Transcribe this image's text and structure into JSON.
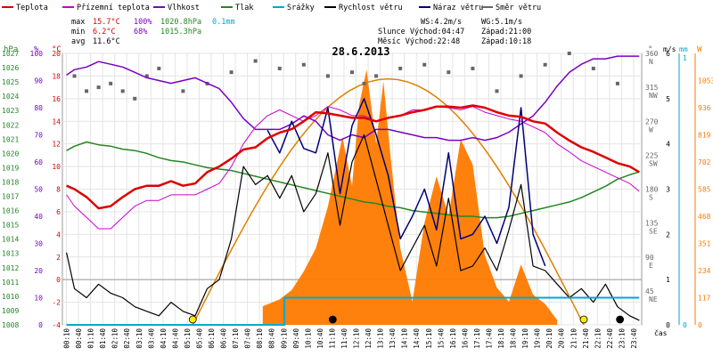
{
  "chart_data": {
    "type": "line",
    "title": "28.6.2013",
    "colors": {
      "temperature": "#dd0000",
      "apparent": "#cc00cc",
      "humidity": "#7a00c4",
      "pressure": "#228822",
      "rain": "#00aacc",
      "wind_speed": "#000000",
      "gust": "#00007a",
      "wind_dir": "#666666",
      "radiation": "#ff7a00",
      "sun_arc": "#e08000",
      "threshold": "#999999"
    },
    "legend": [
      {
        "key": "temperature",
        "label": "Teplota"
      },
      {
        "key": "apparent",
        "label": "Přízemní teplota"
      },
      {
        "key": "humidity",
        "label": "Vlhkost"
      },
      {
        "key": "pressure",
        "label": "Tlak"
      },
      {
        "key": "rain",
        "label": "Srážky"
      },
      {
        "key": "wind_speed",
        "label": "Rychlost větru"
      },
      {
        "key": "gust",
        "label": "Náraz větru"
      },
      {
        "key": "wind_dir",
        "label": "Směr větru"
      }
    ],
    "stats": {
      "max_label": "max",
      "max_temp": "15.7°C",
      "max_hum": "100%",
      "max_pres": "1020.8hPa",
      "rain_total": "0.1mm",
      "min_label": "min",
      "min_temp": "6.2°C",
      "min_hum": "68%",
      "min_pres": "1015.3hPa",
      "avg_label": "avg",
      "avg_temp": "11.6°C"
    },
    "info": {
      "ws": "WS:4.2m/s",
      "wg": "WG:5.1m/s",
      "sun_rise": "Slunce Východ:04:47",
      "sun_set": "Západ:21:00",
      "moon_rise": "Měsíc  Východ:22:48",
      "moon_set": "Západ:10:18"
    },
    "axes": {
      "hpa_label": "hPa",
      "pct_label": "%",
      "temp_label": "°C",
      "deg_label": "°",
      "ms_label": "m/s",
      "mm_label": "mm",
      "w_label": "W",
      "time_label": "čas",
      "pressure_ticks": [
        "1027",
        "1026",
        "1025",
        "1024",
        "1023",
        "1022",
        "1021",
        "1020",
        "1019",
        "1018",
        "1017",
        "1016",
        "1015",
        "1014",
        "1013",
        "1012",
        "1011",
        "1010",
        "1009",
        "1008"
      ],
      "humidity_ticks": [
        "100",
        "90",
        "80",
        "70",
        "60",
        "50",
        "40",
        "30",
        "20",
        "10",
        "0"
      ],
      "temp_ticks": [
        "20",
        "18",
        "16",
        "14",
        "12",
        "10",
        "8",
        "6",
        "4",
        "2",
        "0",
        "-2",
        "-4"
      ],
      "dir_ticks": [
        "360\nN",
        "315\nNW",
        "270\nW",
        "225\nSW",
        "180\nS",
        "135\nSE",
        "90\nE",
        "45\nNE"
      ],
      "wind_ticks": [
        "6",
        "5",
        "4",
        "3",
        "2",
        "1",
        "0"
      ],
      "rain_ticks": [
        "1",
        "0"
      ],
      "rad_ticks": [
        "1053",
        "936",
        "819",
        "702",
        "585",
        "468",
        "351",
        "234",
        "117",
        "0"
      ],
      "time_ticks": [
        "00:10",
        "00:40",
        "01:10",
        "01:40",
        "02:10",
        "02:40",
        "03:10",
        "03:40",
        "04:10",
        "04:40",
        "05:10",
        "05:40",
        "06:10",
        "06:40",
        "07:10",
        "07:40",
        "08:10",
        "08:40",
        "09:10",
        "09:40",
        "10:10",
        "10:40",
        "11:10",
        "11:40",
        "12:10",
        "12:40",
        "13:10",
        "13:40",
        "14:10",
        "14:40",
        "15:10",
        "15:40",
        "16:10",
        "16:40",
        "17:10",
        "17:40",
        "18:10",
        "18:40",
        "19:10",
        "19:40",
        "20:10",
        "20:40",
        "21:10",
        "21:40",
        "22:10",
        "22:40",
        "23:10",
        "23:40"
      ],
      "temp_range": [
        -4,
        20
      ],
      "humidity_range": [
        0,
        100
      ],
      "pressure_range": [
        1008,
        1027
      ],
      "dir_range": [
        0,
        360
      ],
      "wind_range": [
        0,
        6
      ],
      "rad_range": [
        0,
        1170
      ]
    },
    "x_range": [
      0,
      24
    ],
    "series": [
      {
        "name": "Teplota",
        "key": "temperature",
        "x": [
          0.17,
          0.5,
          1,
          1.5,
          2,
          2.5,
          3,
          3.5,
          4,
          4.5,
          5,
          5.5,
          6,
          6.5,
          7,
          7.5,
          8,
          8.5,
          9,
          9.5,
          10,
          10.5,
          11,
          11.5,
          12,
          12.5,
          13,
          13.5,
          14,
          14.5,
          15,
          15.5,
          16,
          16.5,
          17,
          17.5,
          18,
          18.5,
          19,
          19.5,
          20,
          20.5,
          21,
          21.5,
          22,
          22.5,
          23,
          23.5,
          23.9
        ],
        "y": [
          8.3,
          8,
          7.3,
          6.3,
          6.5,
          7.3,
          8,
          8.3,
          8.3,
          8.7,
          8.3,
          8.5,
          9.5,
          10,
          10.7,
          11.5,
          11.7,
          12.5,
          13,
          13.3,
          14,
          14.8,
          14.7,
          14.5,
          14.3,
          14.3,
          14,
          14.3,
          14.5,
          14.8,
          15,
          15.3,
          15.3,
          15.2,
          15.4,
          15.2,
          14.8,
          14.5,
          14.4,
          14,
          13.8,
          13,
          12.3,
          11.7,
          11.3,
          10.8,
          10.3,
          10,
          9.5
        ]
      },
      {
        "name": "Přízemní teplota",
        "key": "apparent",
        "x": [
          0.17,
          0.5,
          1,
          1.5,
          2,
          2.5,
          3,
          3.5,
          4,
          4.5,
          5,
          5.5,
          6,
          6.5,
          7,
          7.5,
          8,
          8.5,
          9,
          9.5,
          10,
          10.5,
          11,
          11.5,
          12,
          12.5,
          13,
          13.5,
          14,
          14.5,
          15,
          15.5,
          16,
          16.5,
          17,
          17.5,
          18,
          18.5,
          19,
          19.5,
          20,
          20.5,
          21,
          21.5,
          22,
          22.5,
          23,
          23.5,
          23.9
        ],
        "y": [
          7.5,
          6.5,
          5.5,
          4.5,
          4.5,
          5.5,
          6.5,
          7,
          7,
          7.5,
          7.5,
          7.5,
          8,
          8.5,
          10,
          12,
          13.5,
          14.5,
          15,
          14.5,
          14,
          14.5,
          15.3,
          15,
          14.5,
          14.5,
          14,
          14.3,
          14.5,
          15,
          15,
          15.3,
          15.2,
          15,
          15.3,
          14.8,
          14.5,
          14.2,
          14,
          13.5,
          13,
          12,
          11.3,
          10.5,
          10,
          9.5,
          9,
          8.5,
          7.8
        ]
      },
      {
        "name": "Vlhkost",
        "key": "humidity",
        "x": [
          0.17,
          0.5,
          1,
          1.5,
          2,
          2.5,
          3,
          3.5,
          4,
          4.5,
          5,
          5.5,
          6,
          6.5,
          7,
          7.5,
          8,
          8.5,
          9,
          9.5,
          10,
          10.5,
          11,
          11.5,
          12,
          12.5,
          13,
          13.5,
          14,
          14.5,
          15,
          15.5,
          16,
          16.5,
          17,
          17.5,
          18,
          18.5,
          19,
          19.5,
          20,
          20.5,
          21,
          21.5,
          22,
          22.5,
          23,
          23.5,
          23.9
        ],
        "y": [
          92,
          94,
          95,
          97,
          96,
          95,
          93,
          91,
          90,
          89,
          90,
          91,
          89,
          87,
          82,
          76,
          72,
          72,
          72,
          74,
          77,
          75,
          70,
          68,
          70,
          69,
          72,
          72,
          71,
          70,
          69,
          69,
          68,
          68,
          69,
          68,
          69,
          71,
          74,
          77,
          82,
          88,
          93,
          96,
          98,
          98,
          99,
          99,
          99
        ]
      },
      {
        "name": "Tlak",
        "key": "pressure",
        "x": [
          0.17,
          0.5,
          1,
          1.5,
          2,
          2.5,
          3,
          3.5,
          4,
          4.5,
          5,
          5.5,
          6,
          6.5,
          7,
          7.5,
          8,
          8.5,
          9,
          9.5,
          10,
          10.5,
          11,
          11.5,
          12,
          12.5,
          13,
          13.5,
          14,
          14.5,
          15,
          15.5,
          16,
          16.5,
          17,
          17.5,
          18,
          18.5,
          19,
          19.5,
          20,
          20.5,
          21,
          21.5,
          22,
          22.5,
          23,
          23.5,
          23.9
        ],
        "y": [
          1020.2,
          1020.5,
          1020.8,
          1020.6,
          1020.5,
          1020.3,
          1020.2,
          1020,
          1019.7,
          1019.5,
          1019.4,
          1019.2,
          1019,
          1018.9,
          1018.8,
          1018.6,
          1018.4,
          1018.2,
          1018,
          1017.8,
          1017.6,
          1017.4,
          1017.2,
          1017,
          1016.8,
          1016.6,
          1016.5,
          1016.3,
          1016.2,
          1016,
          1015.9,
          1015.8,
          1015.7,
          1015.6,
          1015.6,
          1015.5,
          1015.5,
          1015.6,
          1015.8,
          1016,
          1016.2,
          1016.4,
          1016.6,
          1016.9,
          1017.3,
          1017.7,
          1018.2,
          1018.5,
          1018.7
        ]
      },
      {
        "name": "Rychlost větru",
        "key": "wind_speed",
        "x": [
          0.17,
          0.5,
          1,
          1.5,
          2,
          2.5,
          3,
          3.5,
          4,
          4.5,
          5,
          5.5,
          6,
          6.5,
          7,
          7.5,
          8,
          8.5,
          9,
          9.5,
          10,
          10.5,
          11,
          11.5,
          12,
          12.5,
          13,
          13.5,
          14,
          14.5,
          15,
          15.5,
          16,
          16.5,
          17,
          17.5,
          18,
          18.5,
          19,
          19.5,
          20,
          20.5,
          21,
          21.5,
          22,
          22.5,
          23,
          23.5,
          23.9
        ],
        "y": [
          1.6,
          0.8,
          0.6,
          0.9,
          0.7,
          0.6,
          0.4,
          0.3,
          0.2,
          0.5,
          0.3,
          0.2,
          0.8,
          1,
          1.9,
          3.5,
          3.1,
          3.3,
          2.8,
          3.3,
          2.5,
          2.9,
          3.8,
          2.2,
          3.6,
          4.2,
          3.2,
          2.2,
          1.2,
          1.7,
          2.2,
          1.3,
          2.8,
          1.2,
          1.3,
          1.7,
          1.2,
          2.1,
          3.1,
          1.3,
          1.2,
          0.9,
          0.6,
          0.8,
          0.5,
          0.9,
          0.4,
          0.2,
          0.1
        ]
      },
      {
        "name": "Náraz větru",
        "key": "gust",
        "x": [
          8.5,
          9,
          9.5,
          10,
          10.5,
          11,
          11.5,
          12,
          12.5,
          13,
          13.5,
          14,
          14.5,
          15,
          15.5,
          16,
          16.5,
          17,
          17.5,
          18,
          18.5,
          19,
          19.5,
          20
        ],
        "y": [
          4.3,
          3.8,
          4.5,
          3.9,
          3.8,
          4.8,
          2.9,
          4.4,
          5,
          4.2,
          3.3,
          1.9,
          2.4,
          3,
          2.1,
          3.8,
          1.9,
          2,
          2.4,
          1.8,
          2.6,
          4.8,
          2,
          1.3
        ]
      },
      {
        "name": "Směr větru",
        "key": "wind_dir",
        "x": [
          0.5,
          1,
          1.5,
          2,
          2.5,
          3,
          3.5,
          4,
          5,
          6,
          7,
          8,
          9,
          10,
          11,
          12,
          12.5,
          13,
          14,
          15,
          16,
          17,
          18,
          19,
          20,
          21,
          22,
          23
        ],
        "y": [
          330,
          310,
          315,
          320,
          310,
          300,
          330,
          340,
          310,
          320,
          335,
          350,
          340,
          345,
          330,
          335,
          320,
          330,
          340,
          345,
          335,
          340,
          310,
          330,
          345,
          360,
          340,
          320
        ]
      },
      {
        "name": "Radiation",
        "key": "radiation",
        "x": [
          8.3,
          9,
          9.5,
          10,
          10.5,
          11,
          11.3,
          11.6,
          12,
          12.3,
          12.6,
          13,
          13.3,
          13.6,
          14,
          14.5,
          15,
          15.5,
          16,
          16.5,
          17,
          17.5,
          18,
          18.5,
          19,
          19.5,
          20,
          20.5
        ],
        "y": [
          80,
          110,
          150,
          230,
          330,
          510,
          660,
          810,
          600,
          950,
          1100,
          780,
          1050,
          720,
          330,
          100,
          440,
          640,
          470,
          800,
          690,
          300,
          160,
          100,
          260,
          130,
          90,
          20
        ]
      }
    ],
    "rain_line": [
      {
        "x": 0.17,
        "y": 0
      },
      {
        "x": 9.2,
        "y": 0
      },
      {
        "x": 9.2,
        "y": 0.1
      },
      {
        "x": 23.9,
        "y": 0.1
      }
    ],
    "markers": [
      {
        "x": 5.4,
        "label": "sunrise",
        "kind": "sun"
      },
      {
        "x": 21.6,
        "label": "sunset",
        "kind": "sun"
      },
      {
        "x": 11.2,
        "label": "moon",
        "kind": "moon"
      },
      {
        "x": 23.1,
        "label": "moon",
        "kind": "moon"
      }
    ]
  }
}
